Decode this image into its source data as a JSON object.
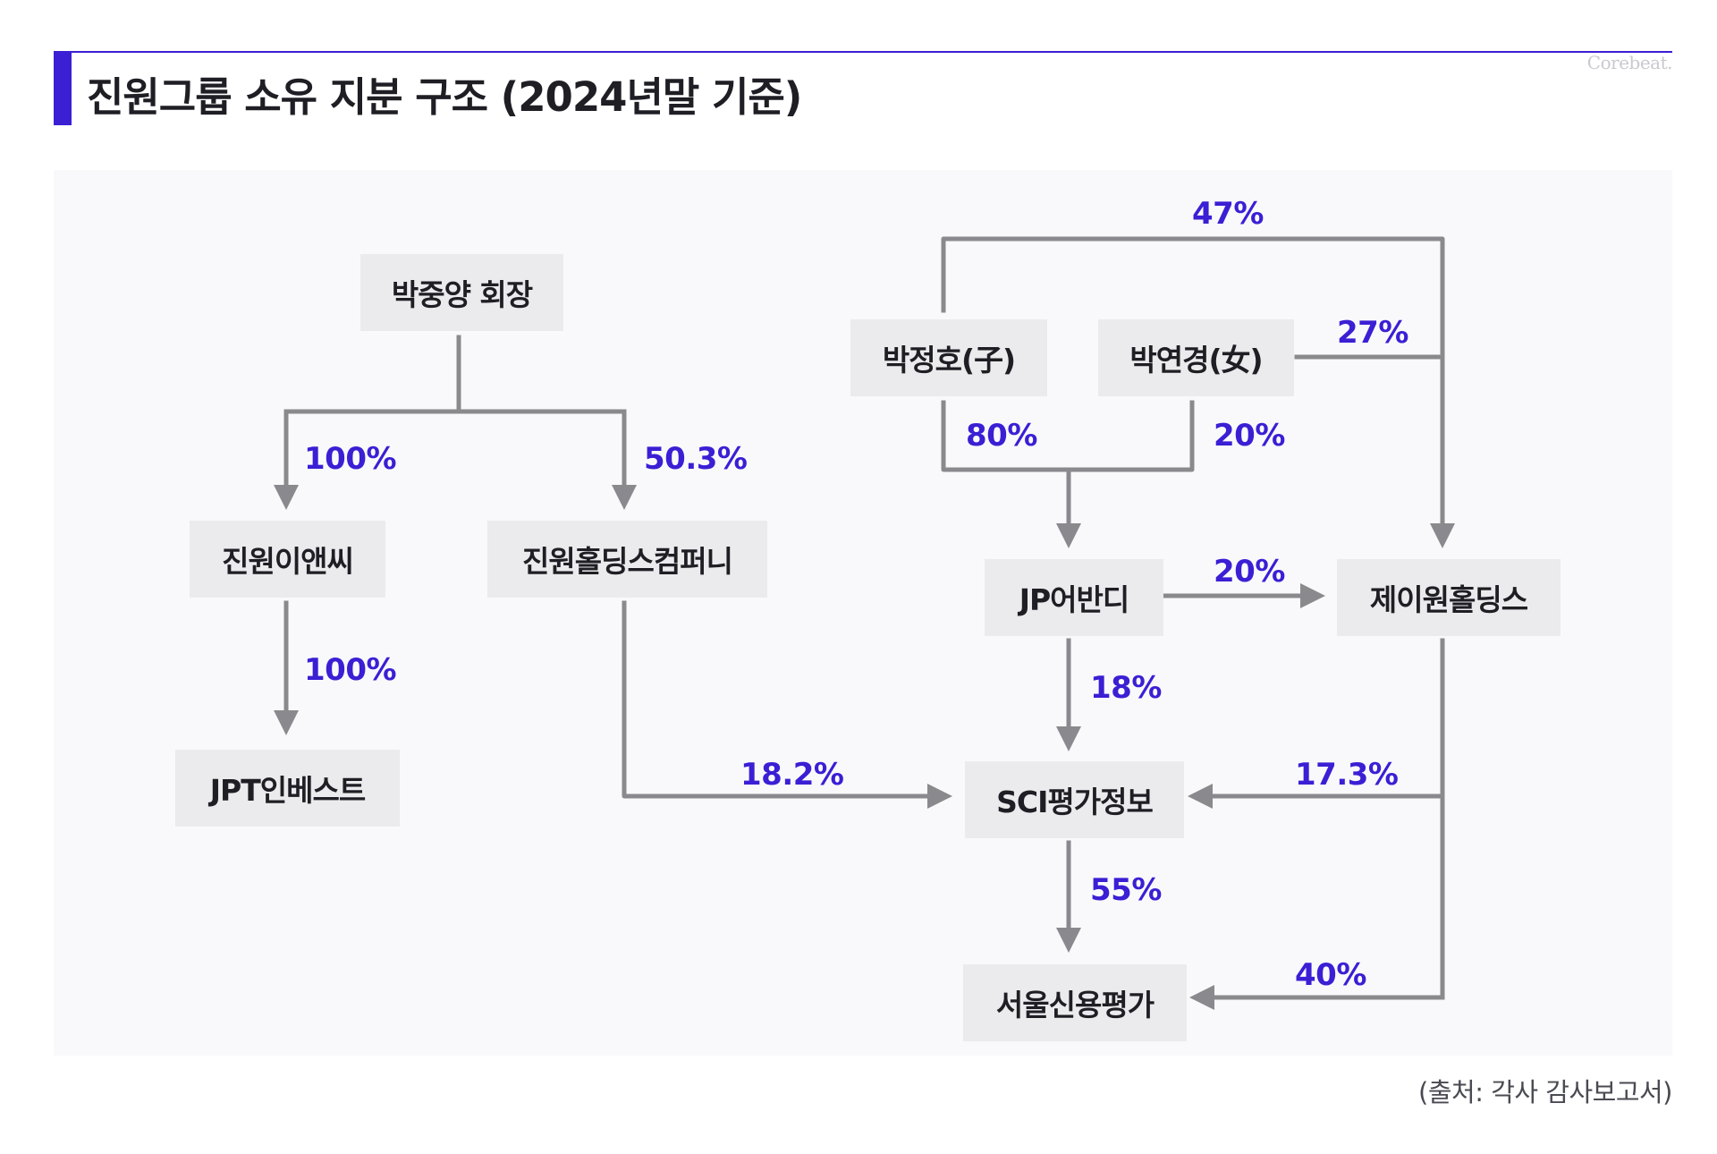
{
  "header": {
    "title": "진원그룹 소유 지분 구조 (2024년말 기준)",
    "brand": "Corebeat."
  },
  "colors": {
    "accent": "#3a1fd4",
    "node_bg": "#ebebed",
    "connector": "#8a8a8e",
    "canvas_bg": "#f9f9fc"
  },
  "nodes": {
    "chairman": "박중양 회장",
    "jinwon_anc": "진원이앤씨",
    "jinwon_holdings_company": "진원홀딩스컴퍼니",
    "jpt_invest": "JPT인베스트",
    "park_jungho": "박정호(子)",
    "park_yeonkyung": "박연경(女)",
    "jp_advandi": "JP어반디",
    "jwon_holdings": "제이원홀딩스",
    "sci_info": "SCI평가정보",
    "seoul_credit": "서울신용평가"
  },
  "edges": [
    {
      "from": "박중양 회장",
      "to": "진원이앤씨",
      "label": "100%"
    },
    {
      "from": "박중양 회장",
      "to": "진원홀딩스컴퍼니",
      "label": "50.3%"
    },
    {
      "from": "진원이앤씨",
      "to": "JPT인베스트",
      "label": "100%"
    },
    {
      "from": "진원홀딩스컴퍼니",
      "to": "SCI평가정보",
      "label": "18.2%"
    },
    {
      "from": "박정호(子)",
      "to": "제이원홀딩스",
      "label": "47%"
    },
    {
      "from": "박연경(女)",
      "to": "제이원홀딩스",
      "label": "27%"
    },
    {
      "from": "박정호(子)",
      "to": "JP어반디",
      "label": "80%"
    },
    {
      "from": "박연경(女)",
      "to": "JP어반디",
      "label": "20%"
    },
    {
      "from": "JP어반디",
      "to": "제이원홀딩스",
      "label": "20%"
    },
    {
      "from": "JP어반디",
      "to": "SCI평가정보",
      "label": "18%"
    },
    {
      "from": "제이원홀딩스",
      "to": "SCI평가정보",
      "label": "17.3%"
    },
    {
      "from": "SCI평가정보",
      "to": "서울신용평가",
      "label": "55%"
    },
    {
      "from": "제이원홀딩스",
      "to": "서울신용평가",
      "label": "40%"
    }
  ],
  "source_note": "(출처: 각사 감사보고서)"
}
